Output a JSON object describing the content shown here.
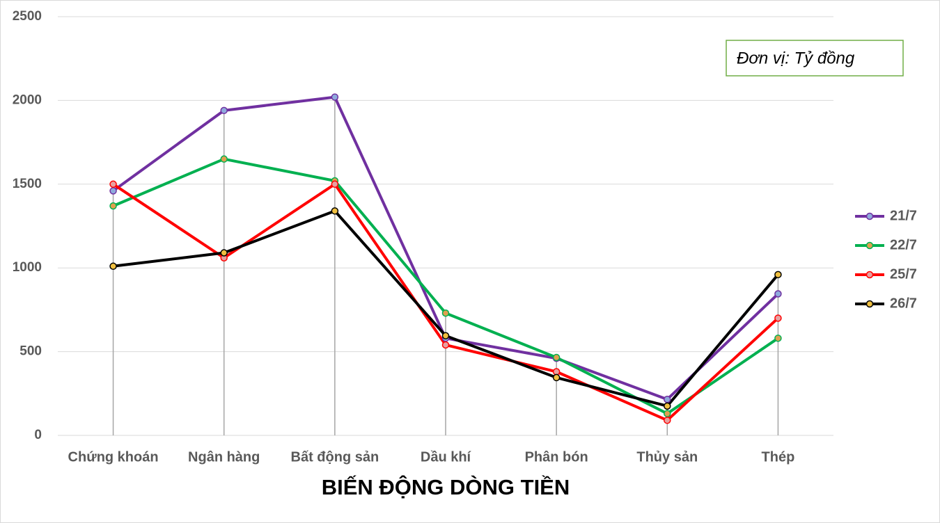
{
  "chart_data": {
    "type": "line",
    "x_label": "BIẾN ĐỘNG DÒNG TIỀN",
    "annotation": "Đơn vị: Tỷ đồng",
    "categories": [
      "Chứng khoán",
      "Ngân hàng",
      "Bất động sản",
      "Dầu khí",
      "Phân bón",
      "Thủy sản",
      "Thép"
    ],
    "series": [
      {
        "name": "21/7",
        "color": "#7030a0",
        "marker_color": "#8faadc",
        "values": [
          1460,
          1940,
          2020,
          580,
          460,
          215,
          845
        ]
      },
      {
        "name": "22/7",
        "color": "#00b050",
        "marker_color": "#e0a050",
        "values": [
          1370,
          1650,
          1520,
          730,
          465,
          130,
          580
        ]
      },
      {
        "name": "25/7",
        "color": "#ff0000",
        "marker_color": "#e8a0a0",
        "values": [
          1500,
          1060,
          1500,
          540,
          380,
          90,
          700
        ]
      },
      {
        "name": "26/7",
        "color": "#000000",
        "marker_color": "#f0c040",
        "values": [
          1010,
          1090,
          1340,
          595,
          345,
          175,
          960
        ]
      }
    ],
    "ylim": [
      0,
      2500
    ],
    "yticks": [
      0,
      500,
      1000,
      1500,
      2000,
      2500
    ],
    "grid": true,
    "legend": "right"
  }
}
